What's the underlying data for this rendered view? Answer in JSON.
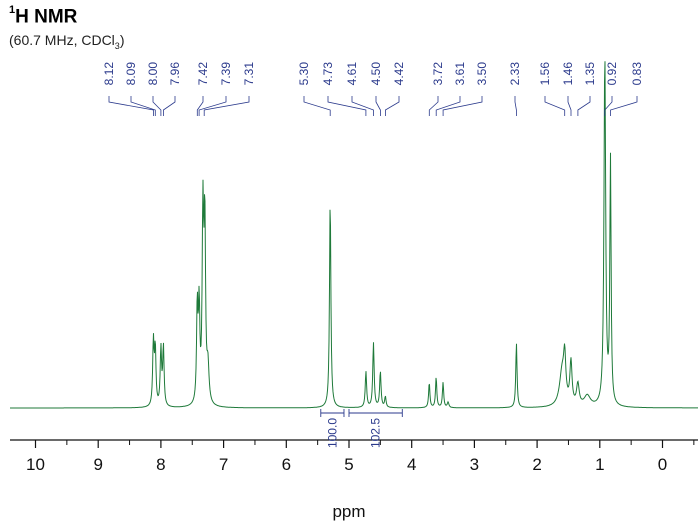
{
  "chart_data": {
    "type": "line",
    "title": "H NMR",
    "title_superscript": "1",
    "subtitle_main": "(60.7 MHz, CDCl",
    "subtitle_sub": "3",
    "subtitle_end": ")",
    "xlabel": "ppm",
    "x_reversed": true,
    "xlim": [
      10.6,
      -0.4
    ],
    "ylim": [
      0,
      100
    ],
    "grid": false,
    "xticks": [
      "10",
      "9",
      "8",
      "7",
      "6",
      "5",
      "4",
      "3",
      "2",
      "1",
      "0"
    ],
    "line_color": "#1f7a3a",
    "label_color": "#2b3a8c",
    "peak_labels": [
      "8.12",
      "8.09",
      "8.00",
      "7.96",
      "7.42",
      "7.39",
      "7.31",
      "5.30",
      "4.73",
      "4.61",
      "4.50",
      "4.42",
      "3.72",
      "3.61",
      "3.50",
      "2.33",
      "1.56",
      "1.46",
      "1.35",
      "0.92",
      "0.83"
    ],
    "integrals": [
      {
        "from": 5.45,
        "to": 5.08,
        "value": "100.0"
      },
      {
        "from": 5.0,
        "to": 4.15,
        "value": "102.5"
      }
    ],
    "series": [
      {
        "peaks": [
          {
            "ppm": 8.12,
            "height": 18,
            "width": 0.013
          },
          {
            "ppm": 8.09,
            "height": 16,
            "width": 0.013
          },
          {
            "ppm": 8.0,
            "height": 16,
            "width": 0.013
          },
          {
            "ppm": 7.96,
            "height": 16.5,
            "width": 0.013
          },
          {
            "ppm": 7.42,
            "height": 27,
            "width": 0.013
          },
          {
            "ppm": 7.39,
            "height": 26,
            "width": 0.013
          },
          {
            "ppm": 7.33,
            "height": 52,
            "width": 0.014
          },
          {
            "ppm": 7.3,
            "height": 50,
            "width": 0.014
          },
          {
            "ppm": 7.25,
            "height": 10,
            "width": 0.02
          },
          {
            "ppm": 5.3,
            "height": 58,
            "width": 0.013
          },
          {
            "ppm": 4.73,
            "height": 10,
            "width": 0.013
          },
          {
            "ppm": 4.61,
            "height": 18,
            "width": 0.013
          },
          {
            "ppm": 4.5,
            "height": 10,
            "width": 0.013
          },
          {
            "ppm": 4.42,
            "height": 3,
            "width": 0.013
          },
          {
            "ppm": 3.72,
            "height": 7,
            "width": 0.012
          },
          {
            "ppm": 3.61,
            "height": 8.5,
            "width": 0.012
          },
          {
            "ppm": 3.5,
            "height": 7,
            "width": 0.012
          },
          {
            "ppm": 3.42,
            "height": 1.5,
            "width": 0.015
          },
          {
            "ppm": 2.33,
            "height": 18,
            "width": 0.012
          },
          {
            "ppm": 1.6,
            "height": 10,
            "width": 0.05
          },
          {
            "ppm": 1.56,
            "height": 11,
            "width": 0.02
          },
          {
            "ppm": 1.46,
            "height": 12,
            "width": 0.02
          },
          {
            "ppm": 1.35,
            "height": 6,
            "width": 0.025
          },
          {
            "ppm": 1.2,
            "height": 3,
            "width": 0.06
          },
          {
            "ppm": 0.92,
            "height": 98,
            "width": 0.016
          },
          {
            "ppm": 0.83,
            "height": 68,
            "width": 0.012
          }
        ]
      }
    ]
  }
}
